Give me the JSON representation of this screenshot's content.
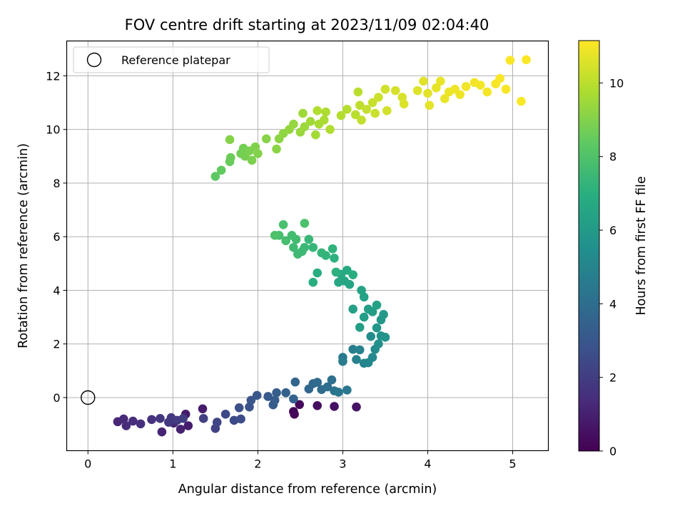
{
  "chart_data": {
    "type": "scatter",
    "title": "FOV centre drift starting at 2023/11/09 02:04:40",
    "xlabel": "Angular distance from reference (arcmin)",
    "ylabel": "Rotation from reference (arcmin)",
    "xlim": [
      -0.25,
      5.42
    ],
    "ylim": [
      -1.98,
      13.3
    ],
    "xticks": [
      0,
      1,
      2,
      3,
      4,
      5
    ],
    "yticks": [
      0,
      2,
      4,
      6,
      8,
      10,
      12
    ],
    "grid": true,
    "legend": {
      "placement": "top-left",
      "entries": [
        "Reference platepar"
      ]
    },
    "reference_point": {
      "x": 0,
      "y": 0,
      "label": "Reference platepar"
    },
    "colorbar": {
      "label": "Hours from first FF file",
      "colormap": "viridis",
      "range": [
        0,
        11.15
      ],
      "ticks": [
        0,
        2,
        4,
        6,
        8,
        10
      ]
    },
    "points": [
      {
        "x": 2.42,
        "y": -0.52,
        "h": 0.1
      },
      {
        "x": 2.43,
        "y": -0.62,
        "h": 0.2
      },
      {
        "x": 2.49,
        "y": -0.26,
        "h": 0.3
      },
      {
        "x": 2.7,
        "y": -0.3,
        "h": 0.4
      },
      {
        "x": 2.9,
        "y": -0.33,
        "h": 0.5
      },
      {
        "x": 3.16,
        "y": -0.35,
        "h": 0.6
      },
      {
        "x": 1.15,
        "y": -0.62,
        "h": 0.8
      },
      {
        "x": 1.35,
        "y": -0.42,
        "h": 0.85
      },
      {
        "x": 1.18,
        "y": -1.05,
        "h": 0.9
      },
      {
        "x": 1.09,
        "y": -1.18,
        "h": 1.0
      },
      {
        "x": 0.87,
        "y": -1.28,
        "h": 1.1
      },
      {
        "x": 1.01,
        "y": -0.95,
        "h": 1.15
      },
      {
        "x": 0.35,
        "y": -0.9,
        "h": 1.2
      },
      {
        "x": 0.42,
        "y": -0.8,
        "h": 1.3
      },
      {
        "x": 0.45,
        "y": -1.05,
        "h": 1.35
      },
      {
        "x": 0.53,
        "y": -0.88,
        "h": 1.4
      },
      {
        "x": 0.62,
        "y": -0.98,
        "h": 1.5
      },
      {
        "x": 0.75,
        "y": -0.82,
        "h": 1.6
      },
      {
        "x": 0.85,
        "y": -0.78,
        "h": 1.7
      },
      {
        "x": 0.95,
        "y": -0.92,
        "h": 1.8
      },
      {
        "x": 0.98,
        "y": -0.75,
        "h": 1.85
      },
      {
        "x": 1.05,
        "y": -0.85,
        "h": 1.9
      },
      {
        "x": 1.12,
        "y": -0.78,
        "h": 2.0
      },
      {
        "x": 1.36,
        "y": -0.78,
        "h": 2.1
      },
      {
        "x": 1.5,
        "y": -1.15,
        "h": 2.2
      },
      {
        "x": 1.52,
        "y": -0.92,
        "h": 2.3
      },
      {
        "x": 1.62,
        "y": -0.62,
        "h": 2.4
      },
      {
        "x": 1.72,
        "y": -0.85,
        "h": 2.5
      },
      {
        "x": 1.8,
        "y": -0.8,
        "h": 2.6
      },
      {
        "x": 1.78,
        "y": -0.38,
        "h": 2.7
      },
      {
        "x": 1.9,
        "y": -0.35,
        "h": 2.8
      },
      {
        "x": 1.92,
        "y": -0.1,
        "h": 2.9
      },
      {
        "x": 1.99,
        "y": 0.08,
        "h": 3.0
      },
      {
        "x": 2.12,
        "y": 0.04,
        "h": 3.1
      },
      {
        "x": 2.18,
        "y": -0.27,
        "h": 3.2
      },
      {
        "x": 2.2,
        "y": -0.1,
        "h": 3.25
      },
      {
        "x": 2.22,
        "y": 0.18,
        "h": 3.3
      },
      {
        "x": 2.33,
        "y": 0.18,
        "h": 3.4
      },
      {
        "x": 2.42,
        "y": -0.05,
        "h": 3.5
      },
      {
        "x": 2.44,
        "y": 0.58,
        "h": 3.6
      },
      {
        "x": 2.6,
        "y": 0.32,
        "h": 3.7
      },
      {
        "x": 2.65,
        "y": 0.52,
        "h": 3.8
      },
      {
        "x": 2.7,
        "y": 0.57,
        "h": 3.85
      },
      {
        "x": 2.75,
        "y": 0.3,
        "h": 3.9
      },
      {
        "x": 2.82,
        "y": 0.4,
        "h": 4.0
      },
      {
        "x": 2.87,
        "y": 0.66,
        "h": 4.1
      },
      {
        "x": 2.9,
        "y": 0.25,
        "h": 4.2
      },
      {
        "x": 2.95,
        "y": 0.2,
        "h": 4.3
      },
      {
        "x": 3.05,
        "y": 0.28,
        "h": 4.4
      },
      {
        "x": 3.0,
        "y": 1.5,
        "h": 4.5
      },
      {
        "x": 3.0,
        "y": 1.35,
        "h": 4.6
      },
      {
        "x": 3.12,
        "y": 1.8,
        "h": 4.7
      },
      {
        "x": 3.16,
        "y": 1.42,
        "h": 4.8
      },
      {
        "x": 3.2,
        "y": 1.78,
        "h": 4.9
      },
      {
        "x": 3.25,
        "y": 1.28,
        "h": 5.0
      },
      {
        "x": 3.3,
        "y": 1.3,
        "h": 5.1
      },
      {
        "x": 3.35,
        "y": 1.5,
        "h": 5.2
      },
      {
        "x": 3.38,
        "y": 1.8,
        "h": 5.3
      },
      {
        "x": 3.33,
        "y": 2.28,
        "h": 5.4
      },
      {
        "x": 3.42,
        "y": 2.0,
        "h": 5.5
      },
      {
        "x": 3.45,
        "y": 2.3,
        "h": 5.6
      },
      {
        "x": 3.5,
        "y": 2.25,
        "h": 5.7
      },
      {
        "x": 3.4,
        "y": 2.6,
        "h": 5.8
      },
      {
        "x": 3.45,
        "y": 2.9,
        "h": 5.9
      },
      {
        "x": 3.48,
        "y": 3.1,
        "h": 6.0
      },
      {
        "x": 3.35,
        "y": 3.2,
        "h": 6.1
      },
      {
        "x": 3.3,
        "y": 3.3,
        "h": 6.15
      },
      {
        "x": 3.25,
        "y": 3.0,
        "h": 6.2
      },
      {
        "x": 3.2,
        "y": 2.62,
        "h": 6.25
      },
      {
        "x": 3.12,
        "y": 3.3,
        "h": 6.3
      },
      {
        "x": 3.4,
        "y": 3.45,
        "h": 6.35
      },
      {
        "x": 3.25,
        "y": 3.75,
        "h": 6.4
      },
      {
        "x": 3.22,
        "y": 4.0,
        "h": 6.45
      },
      {
        "x": 3.08,
        "y": 4.22,
        "h": 6.5
      },
      {
        "x": 3.02,
        "y": 4.35,
        "h": 6.55
      },
      {
        "x": 2.95,
        "y": 4.3,
        "h": 6.6
      },
      {
        "x": 2.98,
        "y": 4.6,
        "h": 6.7
      },
      {
        "x": 3.05,
        "y": 4.75,
        "h": 6.8
      },
      {
        "x": 3.12,
        "y": 4.58,
        "h": 6.9
      },
      {
        "x": 2.7,
        "y": 4.65,
        "h": 6.95
      },
      {
        "x": 2.65,
        "y": 4.3,
        "h": 7.0
      },
      {
        "x": 2.92,
        "y": 4.68,
        "h": 7.05
      },
      {
        "x": 2.9,
        "y": 5.2,
        "h": 7.1
      },
      {
        "x": 2.88,
        "y": 5.55,
        "h": 7.2
      },
      {
        "x": 2.8,
        "y": 5.3,
        "h": 7.25
      },
      {
        "x": 2.75,
        "y": 5.4,
        "h": 7.3
      },
      {
        "x": 2.65,
        "y": 5.6,
        "h": 7.35
      },
      {
        "x": 2.6,
        "y": 5.9,
        "h": 7.4
      },
      {
        "x": 2.55,
        "y": 5.6,
        "h": 7.45
      },
      {
        "x": 2.52,
        "y": 5.45,
        "h": 7.5
      },
      {
        "x": 2.47,
        "y": 5.35,
        "h": 7.55
      },
      {
        "x": 2.42,
        "y": 5.6,
        "h": 7.6
      },
      {
        "x": 2.45,
        "y": 5.9,
        "h": 7.65
      },
      {
        "x": 2.4,
        "y": 6.05,
        "h": 7.7
      },
      {
        "x": 2.33,
        "y": 5.85,
        "h": 7.75
      },
      {
        "x": 2.25,
        "y": 6.05,
        "h": 7.8
      },
      {
        "x": 2.3,
        "y": 6.45,
        "h": 7.85
      },
      {
        "x": 2.55,
        "y": 6.5,
        "h": 7.9
      },
      {
        "x": 2.2,
        "y": 6.05,
        "h": 7.95
      },
      {
        "x": 1.5,
        "y": 8.25,
        "h": 8.3
      },
      {
        "x": 1.57,
        "y": 8.48,
        "h": 8.4
      },
      {
        "x": 1.67,
        "y": 8.8,
        "h": 8.5
      },
      {
        "x": 1.68,
        "y": 8.95,
        "h": 8.6
      },
      {
        "x": 1.8,
        "y": 9.1,
        "h": 8.7
      },
      {
        "x": 1.83,
        "y": 9.3,
        "h": 8.75
      },
      {
        "x": 1.85,
        "y": 9.0,
        "h": 8.8
      },
      {
        "x": 1.9,
        "y": 9.2,
        "h": 8.85
      },
      {
        "x": 1.93,
        "y": 8.85,
        "h": 8.9
      },
      {
        "x": 1.97,
        "y": 9.35,
        "h": 8.95
      },
      {
        "x": 2.0,
        "y": 9.1,
        "h": 9.0
      },
      {
        "x": 1.67,
        "y": 9.62,
        "h": 9.05
      },
      {
        "x": 2.1,
        "y": 9.65,
        "h": 9.1
      },
      {
        "x": 2.22,
        "y": 9.27,
        "h": 9.15
      },
      {
        "x": 2.25,
        "y": 9.65,
        "h": 9.2
      },
      {
        "x": 2.3,
        "y": 9.85,
        "h": 9.25
      },
      {
        "x": 2.37,
        "y": 10.0,
        "h": 9.3
      },
      {
        "x": 2.42,
        "y": 10.2,
        "h": 9.35
      },
      {
        "x": 2.5,
        "y": 9.9,
        "h": 9.4
      },
      {
        "x": 2.55,
        "y": 10.1,
        "h": 9.45
      },
      {
        "x": 2.53,
        "y": 10.6,
        "h": 9.5
      },
      {
        "x": 2.62,
        "y": 10.3,
        "h": 9.55
      },
      {
        "x": 2.68,
        "y": 9.8,
        "h": 9.6
      },
      {
        "x": 2.72,
        "y": 10.2,
        "h": 9.65
      },
      {
        "x": 2.78,
        "y": 10.35,
        "h": 9.7
      },
      {
        "x": 2.8,
        "y": 10.65,
        "h": 9.75
      },
      {
        "x": 2.85,
        "y": 10.0,
        "h": 9.8
      },
      {
        "x": 2.7,
        "y": 10.7,
        "h": 9.82
      },
      {
        "x": 2.98,
        "y": 10.52,
        "h": 9.85
      },
      {
        "x": 3.05,
        "y": 10.75,
        "h": 9.9
      },
      {
        "x": 3.15,
        "y": 10.55,
        "h": 9.95
      },
      {
        "x": 3.18,
        "y": 11.4,
        "h": 10.0
      },
      {
        "x": 3.2,
        "y": 10.9,
        "h": 10.05
      },
      {
        "x": 3.22,
        "y": 10.35,
        "h": 10.1
      },
      {
        "x": 3.28,
        "y": 10.75,
        "h": 10.15
      },
      {
        "x": 3.35,
        "y": 11.0,
        "h": 10.2
      },
      {
        "x": 3.38,
        "y": 10.6,
        "h": 10.25
      },
      {
        "x": 3.42,
        "y": 11.2,
        "h": 10.3
      },
      {
        "x": 3.5,
        "y": 11.5,
        "h": 10.35
      },
      {
        "x": 3.52,
        "y": 10.7,
        "h": 10.4
      },
      {
        "x": 3.62,
        "y": 11.45,
        "h": 10.45
      },
      {
        "x": 3.7,
        "y": 11.2,
        "h": 10.5
      },
      {
        "x": 3.72,
        "y": 10.95,
        "h": 10.55
      },
      {
        "x": 3.88,
        "y": 11.45,
        "h": 10.6
      },
      {
        "x": 3.95,
        "y": 11.8,
        "h": 10.65
      },
      {
        "x": 4.0,
        "y": 11.35,
        "h": 10.7
      },
      {
        "x": 4.02,
        "y": 10.9,
        "h": 10.72
      },
      {
        "x": 4.1,
        "y": 11.55,
        "h": 10.75
      },
      {
        "x": 4.15,
        "y": 11.8,
        "h": 10.8
      },
      {
        "x": 4.2,
        "y": 11.15,
        "h": 10.82
      },
      {
        "x": 4.25,
        "y": 11.4,
        "h": 10.85
      },
      {
        "x": 4.32,
        "y": 11.5,
        "h": 10.88
      },
      {
        "x": 4.38,
        "y": 11.3,
        "h": 10.9
      },
      {
        "x": 4.45,
        "y": 11.6,
        "h": 10.93
      },
      {
        "x": 4.55,
        "y": 11.75,
        "h": 10.95
      },
      {
        "x": 4.62,
        "y": 11.65,
        "h": 10.97
      },
      {
        "x": 4.7,
        "y": 11.4,
        "h": 11.0
      },
      {
        "x": 4.8,
        "y": 11.7,
        "h": 11.02
      },
      {
        "x": 4.85,
        "y": 11.9,
        "h": 11.04
      },
      {
        "x": 4.92,
        "y": 11.5,
        "h": 11.06
      },
      {
        "x": 4.97,
        "y": 12.58,
        "h": 11.08
      },
      {
        "x": 5.1,
        "y": 11.05,
        "h": 11.1
      },
      {
        "x": 5.16,
        "y": 12.6,
        "h": 11.12
      }
    ]
  }
}
